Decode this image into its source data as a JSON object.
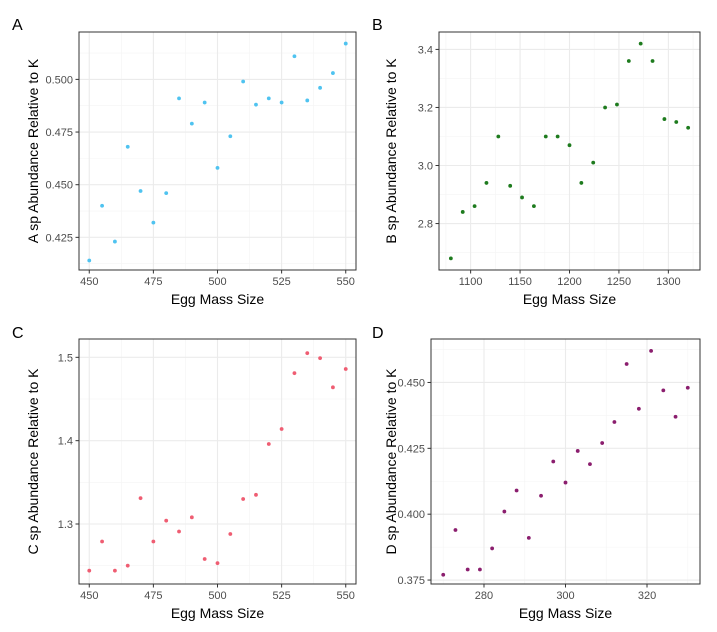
{
  "chart_data": [
    {
      "type": "scatter",
      "panel_label": "A",
      "xlabel": "Egg Mass Size",
      "ylabel": "A sp Abundance Relative to K",
      "color": "#4fc3f0",
      "xlim": [
        446,
        554
      ],
      "ylim": [
        0.4095,
        0.5225
      ],
      "xticks": [
        450,
        475,
        500,
        525,
        550
      ],
      "yticks": [
        0.425,
        0.45,
        0.475,
        0.5
      ],
      "ytick_labels": [
        "0.425",
        "0.450",
        "0.475",
        "0.500"
      ],
      "grid": true,
      "x": [
        450,
        455,
        460,
        465,
        470,
        475,
        480,
        485,
        490,
        495,
        500,
        505,
        510,
        515,
        520,
        525,
        530,
        535,
        540,
        545,
        550
      ],
      "y": [
        0.414,
        0.44,
        0.423,
        0.468,
        0.447,
        0.432,
        0.446,
        0.491,
        0.479,
        0.489,
        0.458,
        0.473,
        0.499,
        0.488,
        0.491,
        0.489,
        0.511,
        0.49,
        0.496,
        0.503,
        0.517
      ]
    },
    {
      "type": "scatter",
      "panel_label": "B",
      "xlabel": "Egg Mass Size",
      "ylabel": "B sp Abundance Relative to K",
      "color": "#1e7b1e",
      "xlim": [
        1068,
        1332
      ],
      "ylim": [
        2.64,
        3.46
      ],
      "xticks": [
        1100,
        1150,
        1200,
        1250,
        1300
      ],
      "yticks": [
        2.8,
        3.0,
        3.2,
        3.4
      ],
      "ytick_labels": [
        "2.8",
        "3.0",
        "3.2",
        "3.4"
      ],
      "grid": true,
      "x": [
        1080,
        1092,
        1104,
        1116,
        1128,
        1140,
        1152,
        1164,
        1176,
        1188,
        1200,
        1212,
        1224,
        1236,
        1248,
        1260,
        1272,
        1284,
        1296,
        1308,
        1320
      ],
      "y": [
        2.68,
        2.84,
        2.86,
        2.94,
        3.1,
        2.93,
        2.89,
        2.86,
        3.1,
        3.1,
        3.07,
        2.94,
        3.01,
        3.2,
        3.21,
        3.36,
        3.42,
        3.36,
        3.16,
        3.15,
        3.13
      ]
    },
    {
      "type": "scatter",
      "panel_label": "C",
      "xlabel": "Egg Mass Size",
      "ylabel": "C sp Abundance Relative to K",
      "color": "#ef5d72",
      "xlim": [
        446,
        554
      ],
      "ylim": [
        1.228,
        1.522
      ],
      "xticks": [
        450,
        475,
        500,
        525,
        550
      ],
      "yticks": [
        1.3,
        1.4,
        1.5
      ],
      "ytick_labels": [
        "1.3",
        "1.4",
        "1.5"
      ],
      "grid": true,
      "x": [
        450,
        455,
        460,
        465,
        470,
        475,
        480,
        485,
        490,
        495,
        500,
        505,
        510,
        515,
        520,
        525,
        530,
        535,
        540,
        545,
        550
      ],
      "y": [
        1.244,
        1.279,
        1.244,
        1.25,
        1.331,
        1.279,
        1.304,
        1.291,
        1.308,
        1.258,
        1.253,
        1.288,
        1.33,
        1.335,
        1.396,
        1.414,
        1.481,
        1.505,
        1.499,
        1.464,
        1.486
      ]
    },
    {
      "type": "scatter",
      "panel_label": "D",
      "xlabel": "Egg Mass Size",
      "ylabel": "D sp Abundance Relative to K",
      "color": "#8b1e6e",
      "xlim": [
        267,
        333
      ],
      "ylim": [
        0.3735,
        0.4665
      ],
      "xticks": [
        280,
        300,
        320
      ],
      "yticks": [
        0.375,
        0.4,
        0.425,
        0.45
      ],
      "ytick_labels": [
        "0.375",
        "0.400",
        "0.425",
        "0.450"
      ],
      "grid": true,
      "x": [
        270,
        273,
        276,
        279,
        282,
        285,
        288,
        291,
        294,
        297,
        300,
        303,
        306,
        309,
        312,
        315,
        318,
        321,
        324,
        327,
        330
      ],
      "y": [
        0.377,
        0.394,
        0.379,
        0.379,
        0.387,
        0.401,
        0.409,
        0.391,
        0.407,
        0.42,
        0.412,
        0.424,
        0.419,
        0.427,
        0.435,
        0.457,
        0.44,
        0.462,
        0.447,
        0.437,
        0.448
      ]
    }
  ]
}
